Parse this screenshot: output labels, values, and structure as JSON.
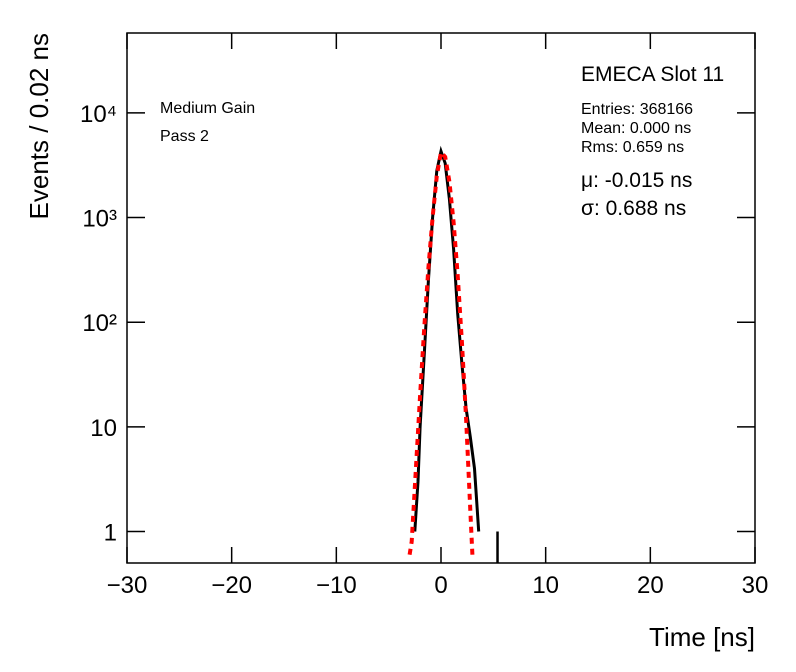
{
  "chart_data": {
    "type": "line",
    "title": "EMECA Slot 11",
    "stats": [
      "Entries: 368166",
      "Mean: 0.000 ns",
      "Rms: 0.659 ns"
    ],
    "fit": [
      "μ: -0.015 ns",
      "σ: 0.688 ns"
    ],
    "annotations": [
      "Medium Gain",
      "Pass 2"
    ],
    "x_label": "Time [ns]",
    "y_label": "Events / 0.02 ns",
    "log_y": true,
    "xlim": [
      -30,
      30
    ],
    "xticks": [
      {
        "value": -30,
        "label": "−30"
      },
      {
        "value": -20,
        "label": "−20"
      },
      {
        "value": -10,
        "label": "−10"
      },
      0,
      10,
      20,
      30
    ],
    "ylim": [
      0.5,
      58000
    ],
    "yticks": [
      1,
      10,
      {
        "value": 100,
        "label": "10²"
      },
      {
        "value": 1000,
        "label": "10³"
      },
      {
        "value": 10000,
        "label": "10⁴"
      }
    ],
    "series": [
      {
        "color": "#000000",
        "style": "solid",
        "x": [
          -2.5,
          -2.2,
          -2.0,
          -1.6,
          -1.2,
          -0.8,
          -0.4,
          0,
          0.4,
          0.8,
          1.2,
          1.6,
          2.0,
          2.4,
          2.8,
          3.2,
          3.4,
          3.6,
          4.0,
          5.4
        ],
        "values": [
          1,
          3,
          10,
          50,
          250,
          1000,
          2800,
          4300,
          3300,
          1500,
          500,
          120,
          40,
          15,
          8,
          4,
          2,
          1,
          null,
          1
        ]
      },
      {
        "color": "#ff0000",
        "style": "dashed",
        "x": [
          -3.0,
          -2.8,
          -2.4,
          -2.0,
          -1.6,
          -1.2,
          -0.8,
          -0.4,
          0,
          0.4,
          0.8,
          1.2,
          1.6,
          2.0,
          2.4,
          2.8,
          3.0
        ],
        "values": [
          0.6,
          0.8,
          4,
          20,
          90,
          330,
          1000,
          2500,
          4200,
          3800,
          2200,
          900,
          280,
          65,
          12,
          1.6,
          0.6
        ]
      }
    ]
  }
}
